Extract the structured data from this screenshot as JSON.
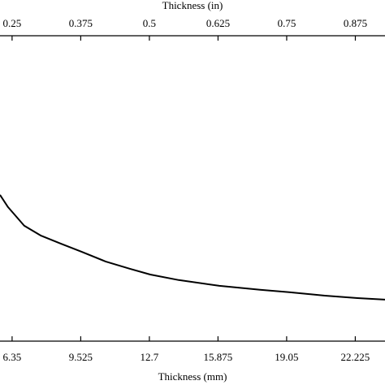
{
  "chart_data": {
    "type": "line",
    "x_label": "Thickness (mm)",
    "x2_label": "Thickness (in)",
    "x": [
      5.79,
      6.16,
      6.91,
      7.67,
      8.61,
      9.55,
      10.67,
      11.8,
      12.74,
      14.06,
      15.94,
      17.82,
      19.17,
      20.82,
      22.33,
      23.6
    ],
    "values": [
      0.479,
      0.439,
      0.378,
      0.346,
      0.319,
      0.293,
      0.261,
      0.237,
      0.218,
      0.2,
      0.181,
      0.168,
      0.16,
      0.149,
      0.141,
      0.136
    ],
    "color": "#000000",
    "xlim": [
      5.79,
      23.6
    ],
    "xticks": [
      6.35,
      9.525,
      12.7,
      15.875,
      19.05,
      22.225
    ],
    "x2lim": [
      0.228,
      0.929
    ],
    "x2ticks": [
      0.25,
      0.375,
      0.5,
      0.625,
      0.75,
      0.875
    ],
    "ylim": [
      0,
      1
    ]
  }
}
